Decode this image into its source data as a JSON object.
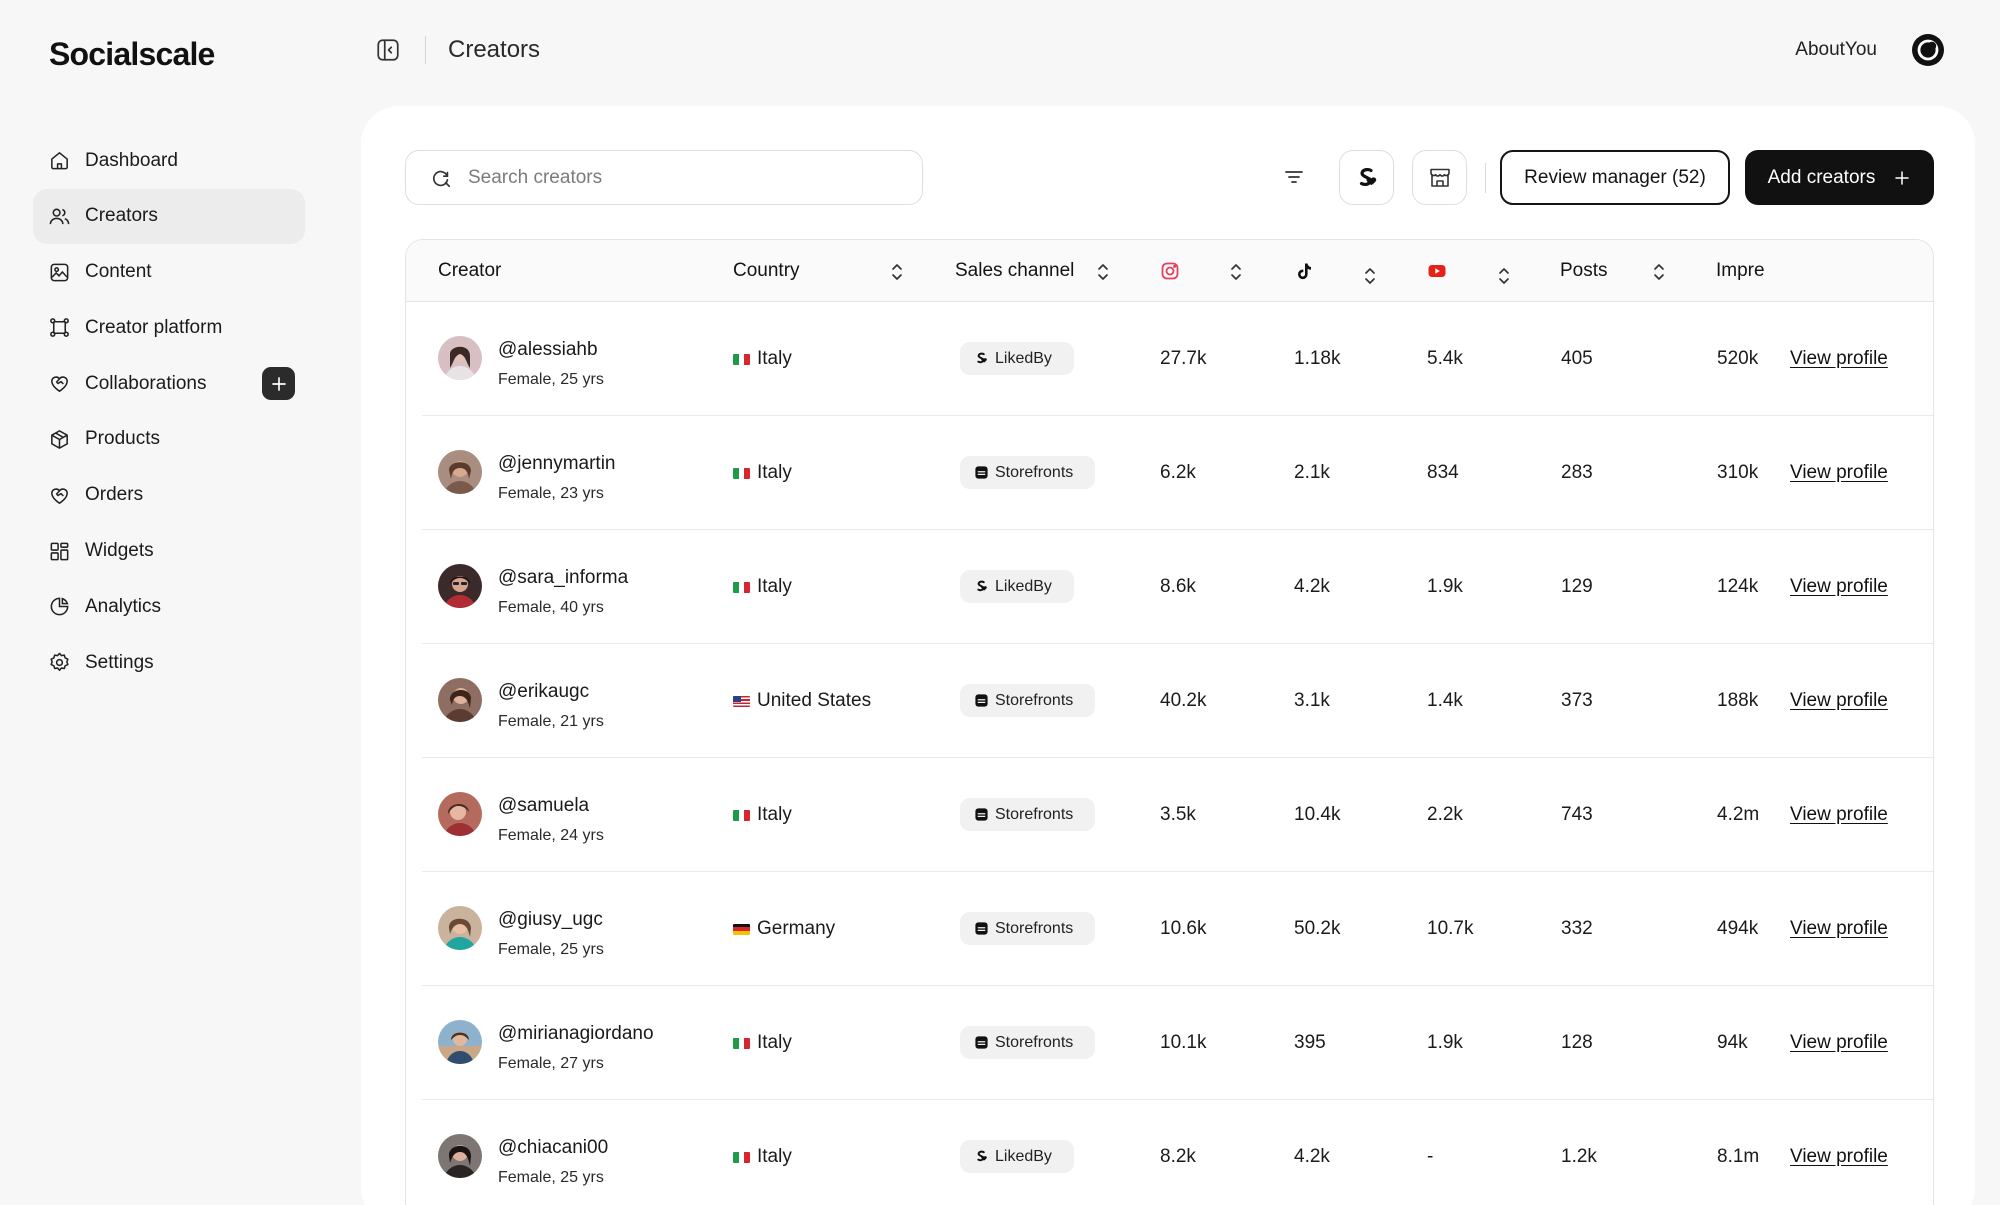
{
  "app": {
    "logo": "Socialscale"
  },
  "sidebar": {
    "items": [
      {
        "label": "Dashboard",
        "icon": "home-icon"
      },
      {
        "label": "Creators",
        "icon": "users-icon",
        "active": true
      },
      {
        "label": "Content",
        "icon": "image-icon"
      },
      {
        "label": "Creator platform",
        "icon": "platform-icon"
      },
      {
        "label": "Collaborations",
        "icon": "heart-handshake-icon"
      },
      {
        "label": "Products",
        "icon": "box-icon"
      },
      {
        "label": "Orders",
        "icon": "heart-handshake-icon"
      },
      {
        "label": "Widgets",
        "icon": "widgets-icon"
      },
      {
        "label": "Analytics",
        "icon": "pie-chart-icon"
      },
      {
        "label": "Settings",
        "icon": "gear-icon"
      }
    ]
  },
  "header": {
    "title": "Creators",
    "account": "AboutYou"
  },
  "toolbar": {
    "search_placeholder": "Search creators",
    "review_label": "Review manager (52)",
    "add_label": "Add creators"
  },
  "table": {
    "columns": {
      "creator": "Creator",
      "country": "Country",
      "sales_channel": "Sales channel",
      "posts": "Posts",
      "impressions": "Impre"
    },
    "view_label": "View profile",
    "rows": [
      {
        "handle": "@alessiahb",
        "meta": "Female, 25 yrs",
        "country": "Italy",
        "flag": "it",
        "channel": "LikedBy",
        "instagram": "27.7k",
        "tiktok": "1.18k",
        "youtube": "5.4k",
        "posts": "405",
        "impressions": "520k"
      },
      {
        "handle": "@jennymartin",
        "meta": "Female, 23 yrs",
        "country": "Italy",
        "flag": "it",
        "channel": "Storefronts",
        "instagram": "6.2k",
        "tiktok": "2.1k",
        "youtube": "834",
        "posts": "283",
        "impressions": "310k"
      },
      {
        "handle": "@sara_informa",
        "meta": "Female, 40 yrs",
        "country": "Italy",
        "flag": "it",
        "channel": "LikedBy",
        "instagram": "8.6k",
        "tiktok": "4.2k",
        "youtube": "1.9k",
        "posts": "129",
        "impressions": "124k"
      },
      {
        "handle": "@erikaugc",
        "meta": "Female, 21 yrs",
        "country": "United States",
        "flag": "us",
        "channel": "Storefronts",
        "instagram": "40.2k",
        "tiktok": "3.1k",
        "youtube": "1.4k",
        "posts": "373",
        "impressions": "188k"
      },
      {
        "handle": "@samuela",
        "meta": "Female, 24 yrs",
        "country": "Italy",
        "flag": "it",
        "channel": "Storefronts",
        "instagram": "3.5k",
        "tiktok": "10.4k",
        "youtube": "2.2k",
        "posts": "743",
        "impressions": "4.2m"
      },
      {
        "handle": "@giusy_ugc",
        "meta": "Female, 25 yrs",
        "country": "Germany",
        "flag": "de",
        "channel": "Storefronts",
        "instagram": "10.6k",
        "tiktok": "50.2k",
        "youtube": "10.7k",
        "posts": "332",
        "impressions": "494k"
      },
      {
        "handle": "@mirianagiordano",
        "meta": "Female, 27 yrs",
        "country": "Italy",
        "flag": "it",
        "channel": "Storefronts",
        "instagram": "10.1k",
        "tiktok": "395",
        "youtube": "1.9k",
        "posts": "128",
        "impressions": "94k"
      },
      {
        "handle": "@chiacani00",
        "meta": "Female, 25 yrs",
        "country": "Italy",
        "flag": "it",
        "channel": "LikedBy",
        "instagram": "8.2k",
        "tiktok": "4.2k",
        "youtube": "-",
        "posts": "1.2k",
        "impressions": "8.1m"
      }
    ]
  },
  "colors": {
    "instagram": "#e4405f",
    "youtube": "#e62117",
    "accent": "#111111"
  }
}
